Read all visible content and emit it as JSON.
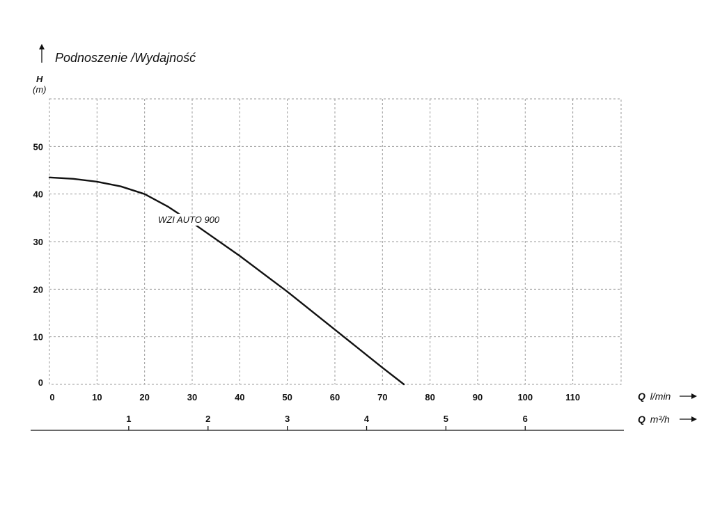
{
  "chart_data": {
    "type": "line",
    "title": "Podnoszenie /Wydajność",
    "ylabel": "H",
    "yunit": "(m)",
    "xlabel_symbol": "Q",
    "xlabel_unit": "l/min",
    "x2label_symbol": "Q",
    "x2label_unit": "m³/h",
    "xlim": [
      0,
      120
    ],
    "ylim": [
      0,
      60
    ],
    "x_ticks": [
      0,
      10,
      20,
      30,
      40,
      50,
      60,
      70,
      80,
      90,
      100,
      110
    ],
    "y_ticks": [
      0,
      10,
      20,
      30,
      40,
      50
    ],
    "x2_ticks": [
      1,
      2,
      3,
      4,
      5,
      6
    ],
    "grid": true,
    "series": [
      {
        "name": "WZI AUTO 900",
        "x": [
          0,
          5,
          10,
          15,
          20,
          25,
          30,
          40,
          50,
          60,
          70,
          74.5
        ],
        "y": [
          43.5,
          43.2,
          42.6,
          41.6,
          40,
          37.3,
          34,
          27,
          19.5,
          11.5,
          3.5,
          0
        ]
      }
    ]
  }
}
